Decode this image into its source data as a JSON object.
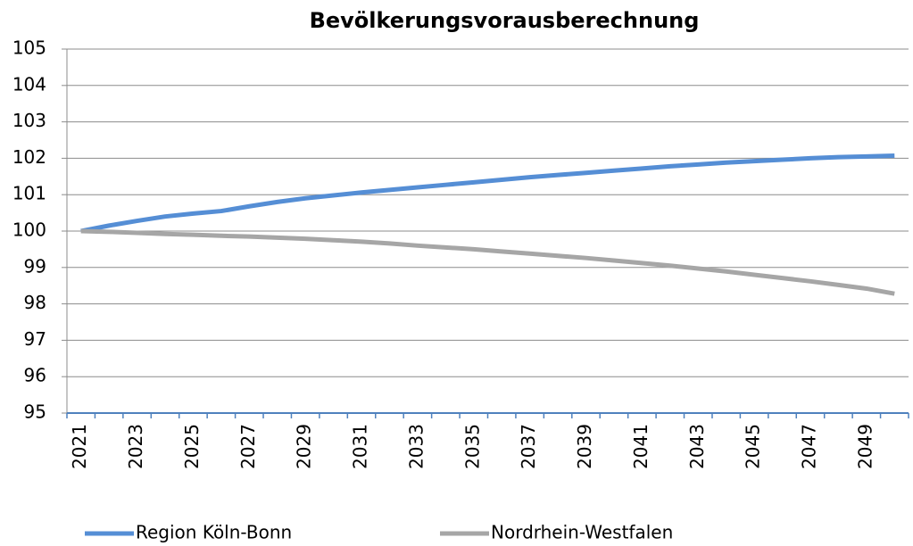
{
  "chart_data": {
    "type": "line",
    "title": "Bevölkerungsvorausberechnung",
    "categories": [
      "2021",
      null,
      "2023",
      null,
      "2025",
      null,
      "2027",
      null,
      "2029",
      null,
      "2031",
      null,
      "2033",
      null,
      "2035",
      null,
      "2037",
      null,
      "2039",
      null,
      "2041",
      null,
      "2043",
      null,
      "2045",
      null,
      "2047",
      null,
      "2049",
      null
    ],
    "series": [
      {
        "name": "Region Köln-Bonn",
        "color": "#558ed5",
        "values": [
          100,
          100.15,
          100.28,
          100.4,
          100.48,
          100.55,
          100.68,
          100.8,
          100.9,
          100.98,
          101.06,
          101.13,
          101.2,
          101.27,
          101.34,
          101.41,
          101.48,
          101.54,
          101.6,
          101.66,
          101.72,
          101.78,
          101.83,
          101.88,
          101.92,
          101.96,
          102.0,
          102.03,
          102.05,
          102.07
        ]
      },
      {
        "name": "Nordrhein-Westfalen",
        "color": "#a6a6a6",
        "values": [
          100,
          99.98,
          99.95,
          99.92,
          99.9,
          99.87,
          99.85,
          99.82,
          99.79,
          99.75,
          99.71,
          99.66,
          99.6,
          99.55,
          99.5,
          99.44,
          99.38,
          99.32,
          99.26,
          99.19,
          99.12,
          99.05,
          98.97,
          98.89,
          98.8,
          98.71,
          98.62,
          98.52,
          98.42,
          98.28
        ]
      }
    ],
    "ylim": [
      95,
      105
    ],
    "yticks": [
      95,
      96,
      97,
      98,
      99,
      100,
      101,
      102,
      103,
      104,
      105
    ],
    "grid": true,
    "legend": "bottom"
  }
}
